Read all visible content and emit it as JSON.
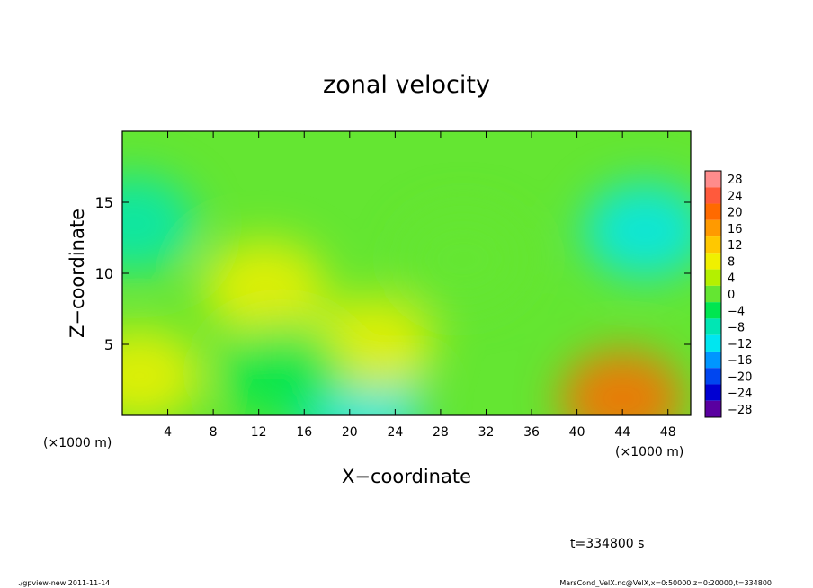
{
  "chart_data": {
    "type": "heatmap",
    "title": "zonal velocity",
    "xlabel": "X−coordinate",
    "ylabel": "Z−coordinate",
    "x_unit_left": "(×1000 m)",
    "x_unit_right": "(×1000 m)",
    "xlim": [
      0,
      50
    ],
    "ylim": [
      0,
      20
    ],
    "x_ticks": [
      4,
      8,
      12,
      16,
      20,
      24,
      28,
      32,
      36,
      40,
      44,
      48
    ],
    "y_ticks": [
      5,
      10,
      15
    ],
    "colorbar": {
      "levels": [
        28,
        24,
        20,
        16,
        12,
        8,
        4,
        0,
        -4,
        -8,
        -12,
        -16,
        -20,
        -24,
        -28
      ],
      "labels": [
        "28",
        "24",
        "20",
        "16",
        "12",
        "8",
        "4",
        "0",
        "−4",
        "−8",
        "−12",
        "−16",
        "−20",
        "−24",
        "−28"
      ],
      "colors": [
        "#ff8c8c",
        "#ff5a3c",
        "#ff6a00",
        "#ff9a00",
        "#ffc800",
        "#f0f000",
        "#b4f000",
        "#64e632",
        "#00e650",
        "#00e6b4",
        "#00e6f0",
        "#0096ff",
        "#0046f0",
        "#0000d2",
        "#5a00a0"
      ]
    },
    "field_features": [
      {
        "x": 1,
        "z": 13.5,
        "value": -9
      },
      {
        "x": 46,
        "z": 13,
        "value": -11
      },
      {
        "x": 21,
        "z": 0.4,
        "value": -12
      },
      {
        "x": 44,
        "z": 1.2,
        "value": 18
      },
      {
        "x": 12.5,
        "z": 9,
        "value": 8
      },
      {
        "x": 1.5,
        "z": 2.8,
        "value": 7
      },
      {
        "x": 22,
        "z": 5,
        "value": 6
      },
      {
        "x": 30,
        "z": 11,
        "value": 1
      },
      {
        "x": 14,
        "z": 3,
        "value": -6
      }
    ]
  },
  "annotation": "t=334800 s",
  "footer_left": "./gpview-new  2011-11-14",
  "footer_right": "MarsCond_VelX.nc@VelX,x=0:50000,z=0:20000,t=334800"
}
